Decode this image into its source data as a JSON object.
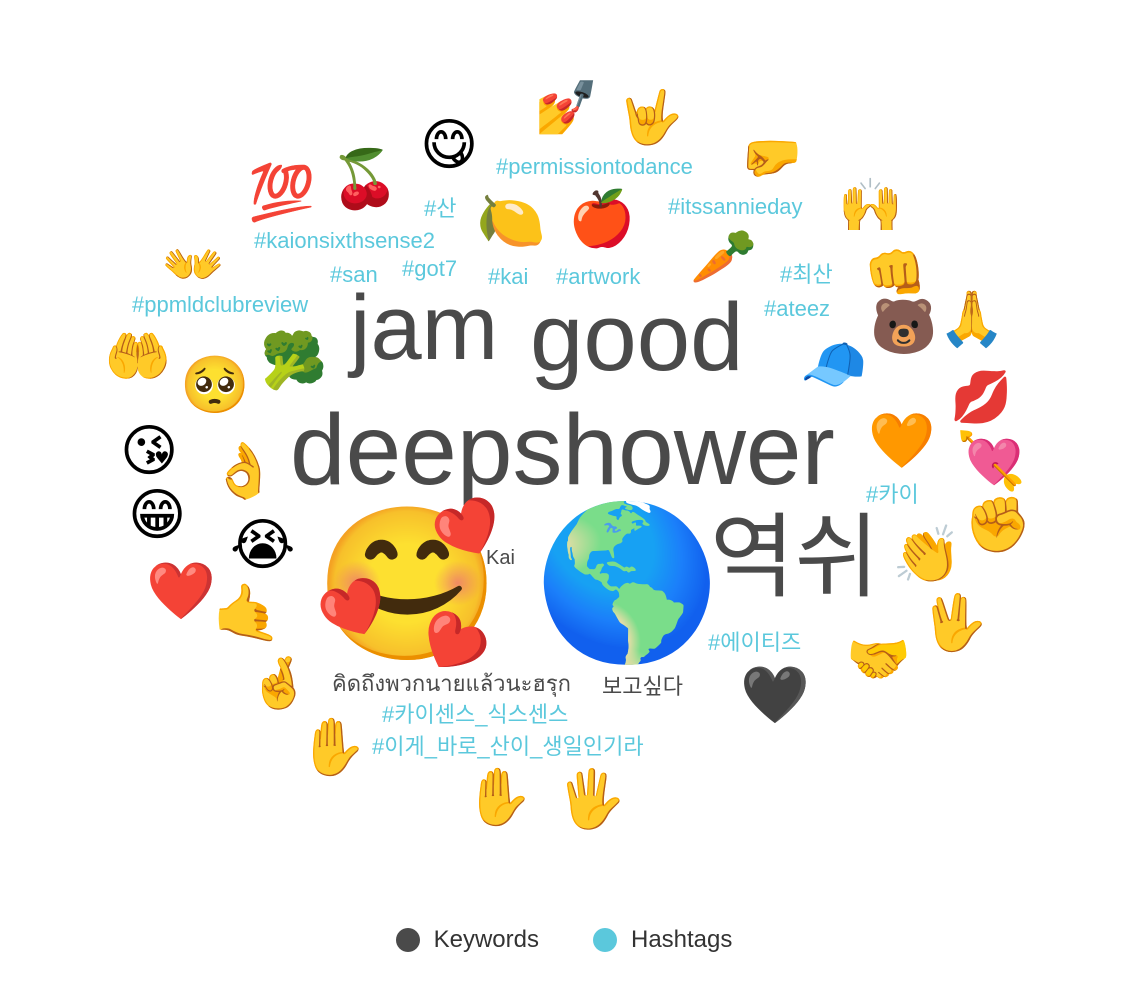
{
  "legend": {
    "keywords_label": "Keywords",
    "hashtags_label": "Hashtags",
    "keywords_color": "#4a4a4a",
    "hashtags_color": "#5bc8dc"
  },
  "keywords": [
    {
      "id": "deepshower",
      "text": "deepshower",
      "rank": 1
    },
    {
      "id": "good",
      "text": "good",
      "rank": 2
    },
    {
      "id": "jam",
      "text": "jam",
      "rank": 3
    },
    {
      "id": "yeokshi",
      "text": "역쉬",
      "rank": 4
    },
    {
      "id": "kai",
      "text": "Kai",
      "rank": 5
    },
    {
      "id": "thai",
      "text": "คิดถึงพวกนายแล้วนะฮรุก",
      "rank": 6
    },
    {
      "id": "bogosipda",
      "text": "보고싶다",
      "rank": 7
    }
  ],
  "hashtags": [
    {
      "id": "permissiontodance",
      "text": "#permissiontodance"
    },
    {
      "id": "itssannieday",
      "text": "#itssannieday"
    },
    {
      "id": "san-kr",
      "text": "#산"
    },
    {
      "id": "kaionsixthsense2",
      "text": "#kaionsixthsense2"
    },
    {
      "id": "san",
      "text": "#san"
    },
    {
      "id": "got7",
      "text": "#got7"
    },
    {
      "id": "kai",
      "text": "#kai"
    },
    {
      "id": "artwork",
      "text": "#artwork"
    },
    {
      "id": "choisan",
      "text": "#최산"
    },
    {
      "id": "ateez",
      "text": "#ateez"
    },
    {
      "id": "ppmldclubreview",
      "text": "#ppmldclubreview"
    },
    {
      "id": "kai-kr",
      "text": "#카이"
    },
    {
      "id": "ateez-kr",
      "text": "#에이티즈"
    },
    {
      "id": "kai-sixthsense-kr",
      "text": "#카이센스_식스센스"
    },
    {
      "id": "san-birthday-kr",
      "text": "#이게_바로_산이_생일인기라"
    }
  ],
  "emojis": [
    {
      "id": "nail-polish",
      "char": "💅"
    },
    {
      "id": "love-you-gesture",
      "char": "🤟"
    },
    {
      "id": "savoring-face",
      "char": "😋"
    },
    {
      "id": "hundred-points",
      "char": "💯"
    },
    {
      "id": "cherries",
      "char": "🍒"
    },
    {
      "id": "leftwards-fist",
      "char": "🤛"
    },
    {
      "id": "lemon",
      "char": "🍋"
    },
    {
      "id": "red-apple",
      "char": "🍎"
    },
    {
      "id": "raising-hands",
      "char": "🙌"
    },
    {
      "id": "carrot",
      "char": "🥕"
    },
    {
      "id": "open-hands",
      "char": "👐"
    },
    {
      "id": "oncoming-fist",
      "char": "👊"
    },
    {
      "id": "bear",
      "char": "🐻"
    },
    {
      "id": "folded-hands",
      "char": "🙏"
    },
    {
      "id": "palms-up-together",
      "char": "🤲"
    },
    {
      "id": "broccoli",
      "char": "🥦"
    },
    {
      "id": "pleading-face",
      "char": "🥺"
    },
    {
      "id": "billed-cap",
      "char": "🧢"
    },
    {
      "id": "kiss-mark",
      "char": "💋"
    },
    {
      "id": "face-blowing-kiss",
      "char": "😘"
    },
    {
      "id": "ok-hand",
      "char": "👌"
    },
    {
      "id": "orange-heart",
      "char": "🧡"
    },
    {
      "id": "heart-with-arrow",
      "char": "💘"
    },
    {
      "id": "grinning-face",
      "char": "😁"
    },
    {
      "id": "raised-fist",
      "char": "✊"
    },
    {
      "id": "crying-face",
      "char": "😭"
    },
    {
      "id": "smiling-face-with-hearts",
      "char": "🥰"
    },
    {
      "id": "globe",
      "char": "🌎"
    },
    {
      "id": "clapping-hands",
      "char": "👏"
    },
    {
      "id": "red-heart",
      "char": "❤️"
    },
    {
      "id": "call-me-hand",
      "char": "🤙"
    },
    {
      "id": "vulcan-salute",
      "char": "🖖"
    },
    {
      "id": "handshake",
      "char": "🤝"
    },
    {
      "id": "crossed-fingers",
      "char": "🤞"
    },
    {
      "id": "black-heart",
      "char": "🖤"
    },
    {
      "id": "raised-hand-1",
      "char": "✋"
    },
    {
      "id": "raised-hand-2",
      "char": "✋"
    },
    {
      "id": "hand-splayed",
      "char": "🖐️"
    }
  ]
}
